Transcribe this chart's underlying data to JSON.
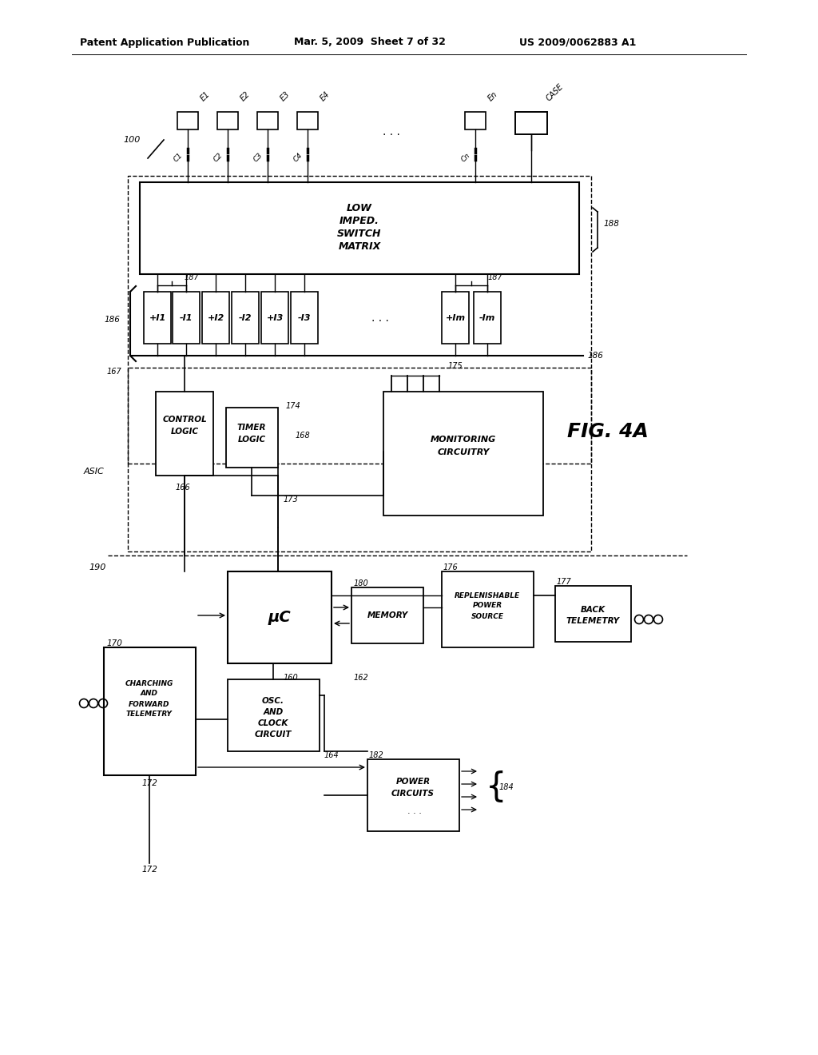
{
  "header_left": "Patent Application Publication",
  "header_mid": "Mar. 5, 2009  Sheet 7 of 32",
  "header_right": "US 2009/0062883 A1",
  "bg_color": "#ffffff",
  "line_color": "#000000"
}
